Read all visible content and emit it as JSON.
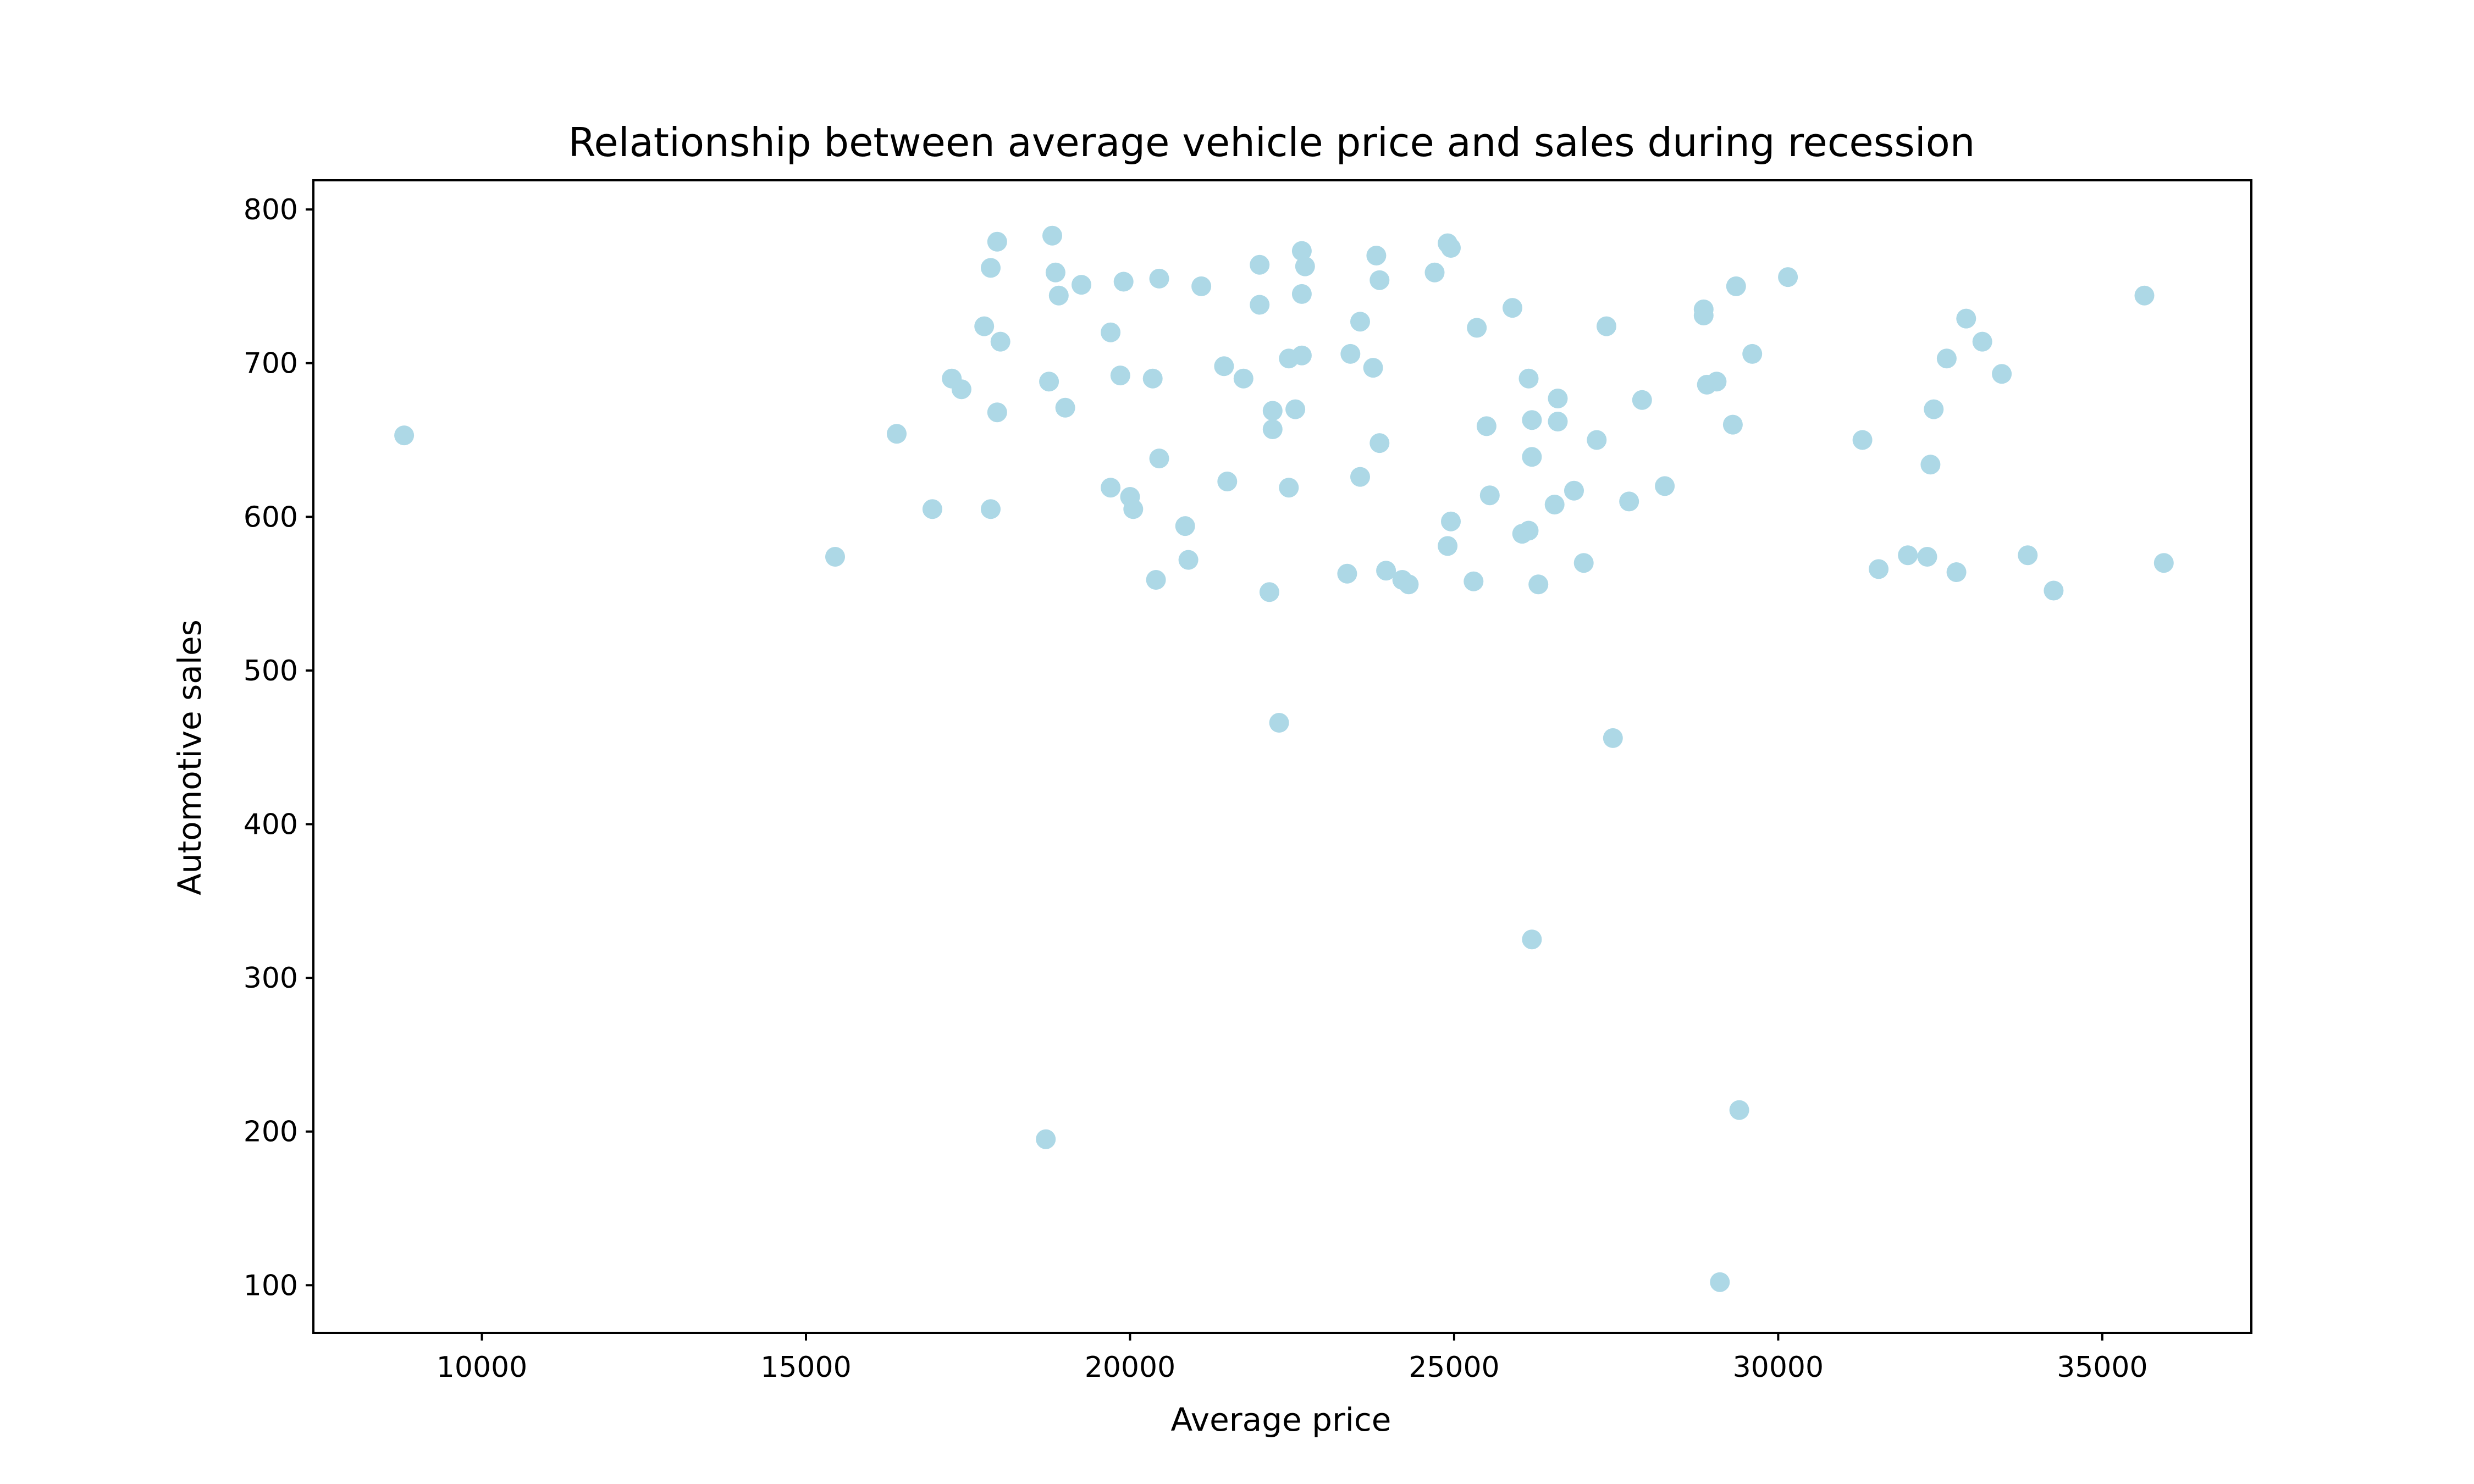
{
  "chart_data": {
    "type": "scatter",
    "title": "Relationship between average vehicle price and sales during recession",
    "xlabel": "Average price",
    "ylabel": "Automotive sales",
    "xlim": [
      7400,
      37300
    ],
    "ylim": [
      69,
      819
    ],
    "xticks": [
      10000,
      15000,
      20000,
      25000,
      30000,
      35000
    ],
    "yticks": [
      100,
      200,
      300,
      400,
      500,
      600,
      700,
      800
    ],
    "grid": false,
    "legend": "none",
    "marker_color": "#add8e6",
    "points": [
      [
        8800,
        653
      ],
      [
        15450,
        574
      ],
      [
        16400,
        654
      ],
      [
        16950,
        605
      ],
      [
        17250,
        690
      ],
      [
        17400,
        683
      ],
      [
        17750,
        724
      ],
      [
        17850,
        605
      ],
      [
        17850,
        762
      ],
      [
        17950,
        779
      ],
      [
        17950,
        668
      ],
      [
        18000,
        714
      ],
      [
        18700,
        195
      ],
      [
        18750,
        688
      ],
      [
        18800,
        783
      ],
      [
        18850,
        759
      ],
      [
        18900,
        744
      ],
      [
        19000,
        671
      ],
      [
        19250,
        751
      ],
      [
        19700,
        619
      ],
      [
        19700,
        720
      ],
      [
        19850,
        692
      ],
      [
        19900,
        753
      ],
      [
        20000,
        613
      ],
      [
        20050,
        605
      ],
      [
        20350,
        690
      ],
      [
        20400,
        559
      ],
      [
        20450,
        755
      ],
      [
        20450,
        638
      ],
      [
        20850,
        594
      ],
      [
        20900,
        572
      ],
      [
        21100,
        750
      ],
      [
        21450,
        698
      ],
      [
        21500,
        623
      ],
      [
        21750,
        690
      ],
      [
        22000,
        764
      ],
      [
        22000,
        738
      ],
      [
        22150,
        551
      ],
      [
        22200,
        669
      ],
      [
        22200,
        657
      ],
      [
        22300,
        466
      ],
      [
        22450,
        703
      ],
      [
        22450,
        619
      ],
      [
        22550,
        670
      ],
      [
        22650,
        773
      ],
      [
        22650,
        745
      ],
      [
        22650,
        705
      ],
      [
        22700,
        763
      ],
      [
        23350,
        563
      ],
      [
        23400,
        706
      ],
      [
        23550,
        626
      ],
      [
        23550,
        727
      ],
      [
        23750,
        697
      ],
      [
        23800,
        770
      ],
      [
        23850,
        754
      ],
      [
        23850,
        648
      ],
      [
        23950,
        565
      ],
      [
        24200,
        559
      ],
      [
        24300,
        556
      ],
      [
        24700,
        759
      ],
      [
        24900,
        581
      ],
      [
        24900,
        778
      ],
      [
        24950,
        775
      ],
      [
        24950,
        597
      ],
      [
        25300,
        558
      ],
      [
        25350,
        723
      ],
      [
        25500,
        659
      ],
      [
        25550,
        614
      ],
      [
        25900,
        736
      ],
      [
        26050,
        589
      ],
      [
        26150,
        591
      ],
      [
        26150,
        690
      ],
      [
        26200,
        325
      ],
      [
        26200,
        663
      ],
      [
        26200,
        639
      ],
      [
        26300,
        556
      ],
      [
        26550,
        608
      ],
      [
        26600,
        677
      ],
      [
        26600,
        662
      ],
      [
        26850,
        617
      ],
      [
        27000,
        570
      ],
      [
        27200,
        650
      ],
      [
        27350,
        724
      ],
      [
        27450,
        456
      ],
      [
        27700,
        610
      ],
      [
        27900,
        676
      ],
      [
        28250,
        620
      ],
      [
        28850,
        735
      ],
      [
        28850,
        731
      ],
      [
        28900,
        686
      ],
      [
        29050,
        688
      ],
      [
        29100,
        102
      ],
      [
        29300,
        660
      ],
      [
        29350,
        750
      ],
      [
        29400,
        214
      ],
      [
        29600,
        706
      ],
      [
        30150,
        756
      ],
      [
        31300,
        650
      ],
      [
        31550,
        566
      ],
      [
        32000,
        575
      ],
      [
        32300,
        574
      ],
      [
        32350,
        634
      ],
      [
        32400,
        670
      ],
      [
        32600,
        703
      ],
      [
        32750,
        564
      ],
      [
        32900,
        729
      ],
      [
        33150,
        714
      ],
      [
        33450,
        693
      ],
      [
        33850,
        575
      ],
      [
        34250,
        552
      ],
      [
        35650,
        744
      ],
      [
        35950,
        570
      ]
    ]
  }
}
